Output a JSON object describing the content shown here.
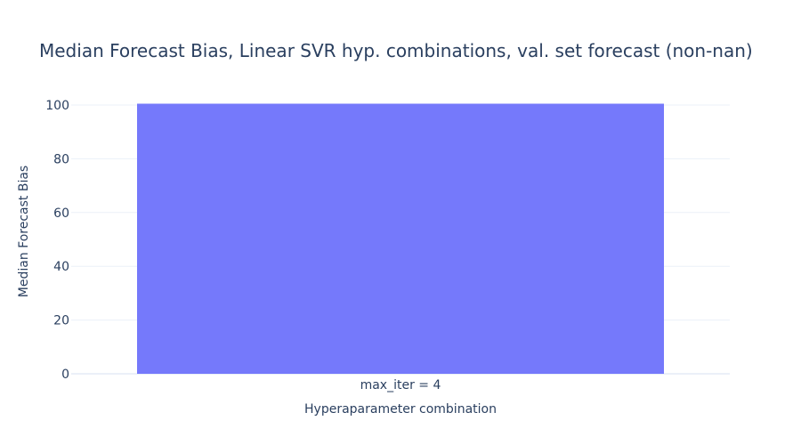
{
  "chart_data": {
    "type": "bar",
    "title": "Median Forecast Bias, Linear SVR hyp. combinations, val. set forecast (non-nan)",
    "xlabel": "Hyperaparameter combination",
    "ylabel": "Median Forecast Bias",
    "categories": [
      "max_iter = 4"
    ],
    "values": [
      100.5
    ],
    "ylim": [
      0,
      101
    ],
    "yticks": [
      0,
      20,
      40,
      60,
      80,
      100
    ],
    "grid": true,
    "legend": "none",
    "colors": {
      "bar": "#7579fb",
      "grid": "#ebf0f8",
      "text": "#2a3f5f"
    }
  }
}
